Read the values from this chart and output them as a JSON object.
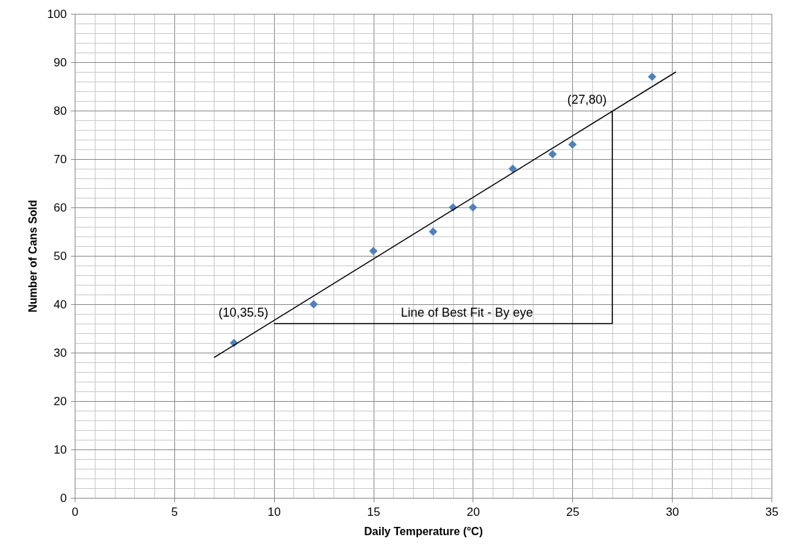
{
  "chart_data": {
    "type": "scatter",
    "xlabel": "Daily Temperature (°C)",
    "ylabel": "Number of Cans Sold",
    "xlim": [
      0,
      35
    ],
    "xticks": [
      0,
      5,
      10,
      15,
      20,
      25,
      30,
      35
    ],
    "ylim": [
      0,
      100
    ],
    "yticks": [
      0,
      10,
      20,
      30,
      40,
      50,
      60,
      70,
      80,
      90,
      100
    ],
    "grid": true,
    "marker": "diamond",
    "series": [
      {
        "color": "#4f81bd",
        "x": [
          8,
          12,
          15,
          18,
          19,
          20,
          22,
          24,
          25,
          29
        ],
        "values": [
          32,
          40,
          51,
          55,
          60,
          60,
          68,
          71,
          73,
          87
        ]
      },
      {
        "type": "line",
        "color": "#000000",
        "marker": "none",
        "x": [
          7,
          30.2
        ],
        "values": [
          29,
          88
        ]
      },
      {
        "type": "line",
        "color": "#000000",
        "marker": "none",
        "x": [
          10,
          27,
          27
        ],
        "values": [
          36,
          36,
          80
        ]
      }
    ],
    "annotations": [
      {
        "text": "(10,35.5)",
        "x": 10,
        "y": 36
      },
      {
        "text": "(27,80)",
        "x": 27,
        "y": 80
      },
      {
        "text": "Line of Best Fit - By eye",
        "x": 23.3,
        "y": 36
      }
    ]
  }
}
